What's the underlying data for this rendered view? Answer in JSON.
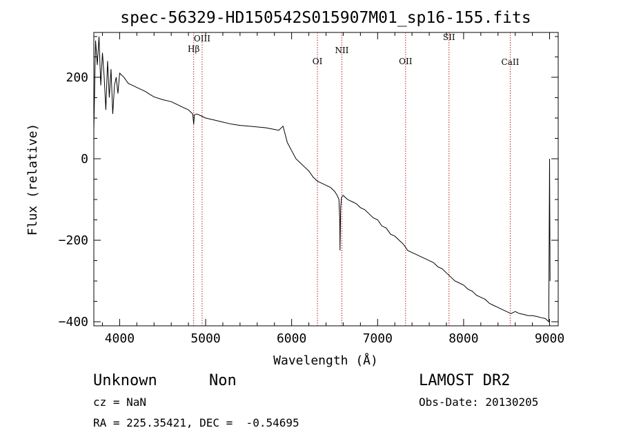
{
  "chart_data": {
    "type": "line",
    "title": "spec-56329-HD150542S015907M01_sp16-155.fits",
    "xlabel": "Wavelength (Å)",
    "ylabel": "Flux (relative)",
    "xlim": [
      3700,
      9100
    ],
    "ylim": [
      -410,
      310
    ],
    "xticks": [
      4000,
      5000,
      6000,
      7000,
      8000,
      9000
    ],
    "yticks": [
      -400,
      -200,
      0,
      200
    ],
    "grid": false,
    "line_color": "#000000",
    "marker_color": "#b22222",
    "spectral_lines": [
      {
        "label": "Hβ",
        "x": 4861
      },
      {
        "label": "OIII",
        "x": 4959
      },
      {
        "label": "OI",
        "x": 6300
      },
      {
        "label": "NII",
        "x": 6584
      },
      {
        "label": "OII",
        "x": 7325
      },
      {
        "label": "SII",
        "x": 7830
      },
      {
        "label": "CaII",
        "x": 8542
      }
    ],
    "series": [
      {
        "x": [
          3700,
          3720,
          3740,
          3760,
          3780,
          3800,
          3820,
          3840,
          3860,
          3880,
          3900,
          3920,
          3940,
          3960,
          3980,
          4000,
          4050,
          4100,
          4150,
          4200,
          4250,
          4300,
          4350,
          4400,
          4500,
          4600,
          4700,
          4800,
          4850,
          4861,
          4870,
          4900,
          4950,
          5000,
          5100,
          5200,
          5300,
          5400,
          5500,
          5600,
          5700,
          5800,
          5850,
          5900,
          5950,
          6000,
          6050,
          6100,
          6150,
          6200,
          6250,
          6300,
          6350,
          6400,
          6450,
          6500,
          6530,
          6550,
          6560,
          6563,
          6570,
          6580,
          6600,
          6650,
          6700,
          6750,
          6800,
          6850,
          6900,
          6950,
          7000,
          7050,
          7100,
          7150,
          7200,
          7250,
          7300,
          7350,
          7400,
          7450,
          7500,
          7550,
          7600,
          7650,
          7700,
          7750,
          7800,
          7850,
          7900,
          7950,
          8000,
          8050,
          8100,
          8150,
          8200,
          8250,
          8300,
          8350,
          8400,
          8450,
          8500,
          8550,
          8600,
          8650,
          8700,
          8750,
          8800,
          8850,
          8900,
          8950,
          8990,
          9000,
          9005
        ],
        "y": [
          70,
          290,
          230,
          300,
          180,
          260,
          200,
          120,
          240,
          150,
          220,
          110,
          180,
          200,
          160,
          210,
          200,
          185,
          180,
          175,
          170,
          165,
          158,
          152,
          145,
          140,
          130,
          120,
          110,
          85,
          108,
          110,
          105,
          100,
          95,
          90,
          85,
          82,
          80,
          78,
          76,
          72,
          70,
          80,
          40,
          20,
          0,
          -10,
          -20,
          -30,
          -45,
          -55,
          -60,
          -65,
          -70,
          -80,
          -90,
          -100,
          -150,
          -225,
          -120,
          -95,
          -90,
          -100,
          -105,
          -110,
          -120,
          -125,
          -135,
          -145,
          -150,
          -165,
          -170,
          -185,
          -190,
          -200,
          -210,
          -225,
          -230,
          -235,
          -240,
          -245,
          -250,
          -255,
          -265,
          -270,
          -280,
          -290,
          -300,
          -305,
          -310,
          -320,
          -325,
          -335,
          -340,
          -345,
          -355,
          -360,
          -365,
          -370,
          -375,
          -380,
          -375,
          -380,
          -382,
          -385,
          -385,
          -387,
          -390,
          -392,
          -400,
          0,
          -300
        ]
      }
    ]
  },
  "footer": {
    "object": "Unknown",
    "class": "Non",
    "survey": "LAMOST DR2",
    "cz": "cz = NaN",
    "obs_date": "Obs-Date: 20130205",
    "coords": "RA = 225.35421, DEC =  -0.54695"
  }
}
